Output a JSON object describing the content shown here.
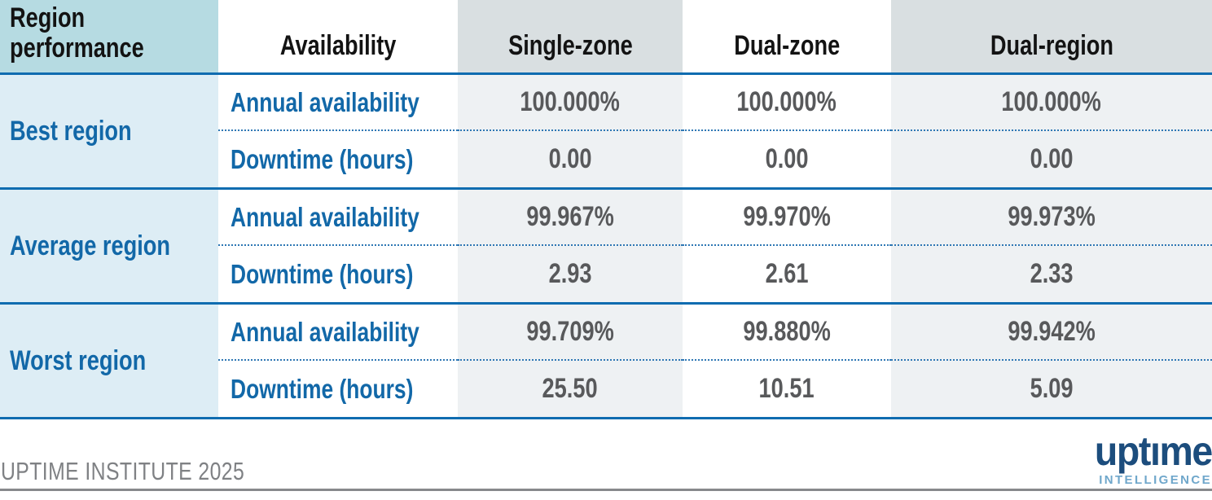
{
  "table": {
    "columns": {
      "c1": "Region performance",
      "c2": "Availability",
      "c3": "Single-zone",
      "c4": "Dual-zone",
      "c5": "Dual-region"
    },
    "groups": [
      {
        "region": "Best region",
        "rows": [
          {
            "label": "Annual availability",
            "values": [
              "100.000%",
              "100.000%",
              "100.000%"
            ]
          },
          {
            "label": "Downtime (hours)",
            "values": [
              "0.00",
              "0.00",
              "0.00"
            ]
          }
        ]
      },
      {
        "region": "Average region",
        "rows": [
          {
            "label": "Annual availability",
            "values": [
              "99.967%",
              "99.970%",
              "99.973%"
            ]
          },
          {
            "label": "Downtime (hours)",
            "values": [
              "2.93",
              "2.61",
              "2.33"
            ]
          }
        ]
      },
      {
        "region": "Worst region",
        "rows": [
          {
            "label": "Annual availability",
            "values": [
              "99.709%",
              "99.880%",
              "99.942%"
            ]
          },
          {
            "label": "Downtime (hours)",
            "values": [
              "25.50",
              "10.51",
              "5.09"
            ]
          }
        ]
      }
    ]
  },
  "footer": {
    "source": "UPTIME INSTITUTE 2025",
    "logo_brand": "uptıme",
    "logo_sub": "INTELLIGENCE"
  },
  "colors": {
    "header_teal": "#b6dbe2",
    "header_gray": "#d9dfe1",
    "body_light_blue": "#ddedf5",
    "body_tint": "#eef1f3",
    "blue_text": "#1268a8",
    "blue_rule": "#0f6cb0",
    "value_gray": "#58595b",
    "footer_gray": "#7f8184",
    "logo_navy": "#1c4d7d",
    "logo_light_blue": "#6fa7cb"
  },
  "chart_data": {
    "type": "table",
    "title": "Region performance",
    "columns": [
      "Region performance",
      "Availability",
      "Single-zone",
      "Dual-zone",
      "Dual-region"
    ],
    "rows": [
      [
        "Best region",
        "Annual availability",
        "100.000%",
        "100.000%",
        "100.000%"
      ],
      [
        "Best region",
        "Downtime (hours)",
        "0.00",
        "0.00",
        "0.00"
      ],
      [
        "Average region",
        "Annual availability",
        "99.967%",
        "99.970%",
        "99.973%"
      ],
      [
        "Average region",
        "Downtime (hours)",
        "2.93",
        "2.61",
        "2.33"
      ],
      [
        "Worst region",
        "Annual availability",
        "99.709%",
        "99.880%",
        "99.942%"
      ],
      [
        "Worst region",
        "Downtime (hours)",
        "25.50",
        "10.51",
        "5.09"
      ]
    ],
    "annual_availability_pct": {
      "best": {
        "single_zone": 100.0,
        "dual_zone": 100.0,
        "dual_region": 100.0
      },
      "average": {
        "single_zone": 99.967,
        "dual_zone": 99.97,
        "dual_region": 99.973
      },
      "worst": {
        "single_zone": 99.709,
        "dual_zone": 99.88,
        "dual_region": 99.942
      }
    },
    "downtime_hours": {
      "best": {
        "single_zone": 0.0,
        "dual_zone": 0.0,
        "dual_region": 0.0
      },
      "average": {
        "single_zone": 2.93,
        "dual_zone": 2.61,
        "dual_region": 2.33
      },
      "worst": {
        "single_zone": 25.5,
        "dual_zone": 10.51,
        "dual_region": 5.09
      }
    },
    "source": "UPTIME INSTITUTE 2025"
  }
}
